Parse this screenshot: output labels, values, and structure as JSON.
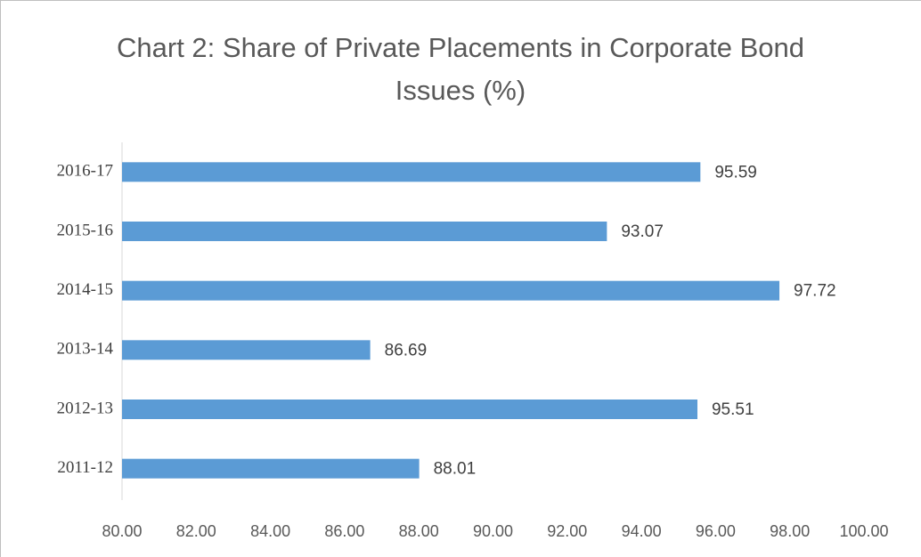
{
  "chart_data": {
    "type": "bar",
    "orientation": "horizontal",
    "title": "Chart 2: Share of Private Placements in Corporate Bond Issues (%)",
    "categories": [
      "2016-17",
      "2015-16",
      "2014-15",
      "2013-14",
      "2012-13",
      "2011-12"
    ],
    "values": [
      95.59,
      93.07,
      97.72,
      86.69,
      95.51,
      88.01
    ],
    "color": "#5b9bd5",
    "xlim": [
      80,
      100
    ],
    "xticks": [
      {
        "value": 80,
        "label": "80.00"
      },
      {
        "value": 82,
        "label": "82.00"
      },
      {
        "value": 84,
        "label": "84.00"
      },
      {
        "value": 86,
        "label": "86.00"
      },
      {
        "value": 88,
        "label": "88.00"
      },
      {
        "value": 90,
        "label": "90.00"
      },
      {
        "value": 92,
        "label": "92.00"
      },
      {
        "value": 94,
        "label": "94.00"
      },
      {
        "value": 96,
        "label": "96.00"
      },
      {
        "value": 98,
        "label": "98.00"
      },
      {
        "value": 100,
        "label": "100.00"
      }
    ],
    "grid": false
  }
}
